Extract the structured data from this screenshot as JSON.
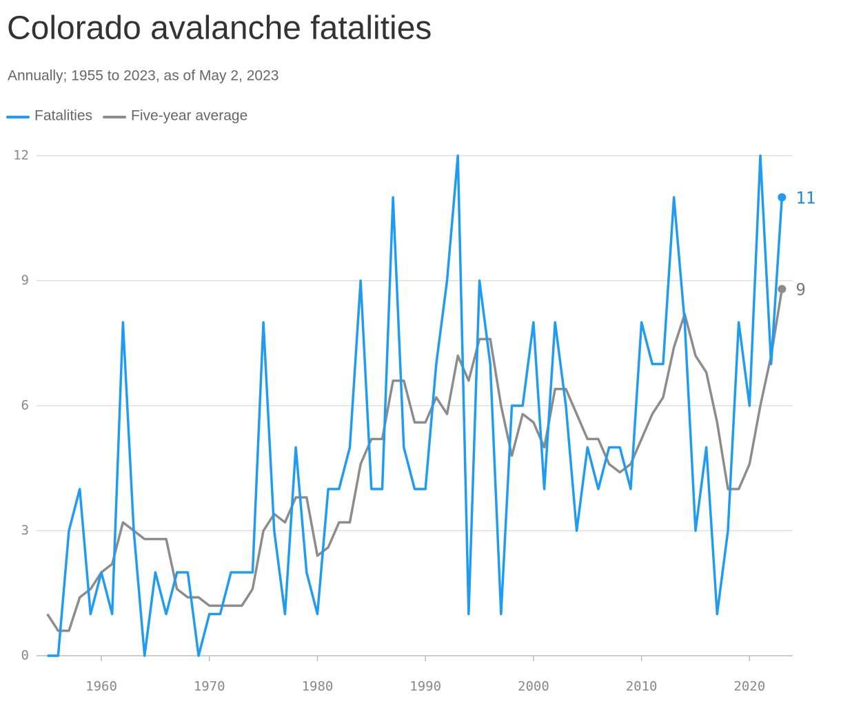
{
  "chart_data": {
    "type": "line",
    "title": "Colorado avalanche fatalities",
    "subtitle": "Annually; 1955 to 2023, as of May 2, 2023",
    "x": [
      1955,
      1956,
      1957,
      1958,
      1959,
      1960,
      1961,
      1962,
      1963,
      1964,
      1965,
      1966,
      1967,
      1968,
      1969,
      1970,
      1971,
      1972,
      1973,
      1974,
      1975,
      1976,
      1977,
      1978,
      1979,
      1980,
      1981,
      1982,
      1983,
      1984,
      1985,
      1986,
      1987,
      1988,
      1989,
      1990,
      1991,
      1992,
      1993,
      1994,
      1995,
      1996,
      1997,
      1998,
      1999,
      2000,
      2001,
      2002,
      2003,
      2004,
      2005,
      2006,
      2007,
      2008,
      2009,
      2010,
      2011,
      2012,
      2013,
      2014,
      2015,
      2016,
      2017,
      2018,
      2019,
      2020,
      2021,
      2022,
      2023
    ],
    "series": [
      {
        "name": "Fatalities",
        "color": "#1f9cf0",
        "end_label": "11",
        "values": [
          0,
          0,
          3,
          4,
          1,
          2,
          1,
          8,
          3,
          0,
          2,
          1,
          2,
          2,
          0,
          1,
          1,
          2,
          2,
          2,
          8,
          3,
          1,
          5,
          2,
          1,
          4,
          4,
          5,
          9,
          4,
          4,
          11,
          5,
          4,
          4,
          7,
          9,
          12,
          1,
          9,
          7,
          1,
          6,
          6,
          8,
          4,
          8,
          6,
          3,
          5,
          4,
          5,
          5,
          4,
          8,
          7,
          7,
          11,
          8,
          3,
          5,
          1,
          3,
          8,
          6,
          12,
          7,
          11
        ]
      },
      {
        "name": "Five-year average",
        "color": "#8c8c8c",
        "end_label": "9",
        "values": [
          1,
          0.6,
          0.6,
          1.4,
          1.6,
          2,
          2.2,
          3.2,
          3,
          2.8,
          2.8,
          2.8,
          1.6,
          1.4,
          1.4,
          1.2,
          1.2,
          1.2,
          1.2,
          1.6,
          3,
          3.4,
          3.2,
          3.8,
          3.8,
          2.4,
          2.6,
          3.2,
          3.2,
          4.6,
          5.2,
          5.2,
          6.6,
          6.6,
          5.6,
          5.6,
          6.2,
          5.8,
          7.2,
          6.6,
          7.6,
          7.6,
          6,
          4.8,
          5.8,
          5.6,
          5,
          6.4,
          6.4,
          5.8,
          5.2,
          5.2,
          4.6,
          4.4,
          4.6,
          5.2,
          5.8,
          6.2,
          7.4,
          8.2,
          7.2,
          6.8,
          5.6,
          4,
          4,
          4.6,
          6,
          7.2,
          8.8
        ]
      }
    ],
    "xlim": [
      1954,
      2024
    ],
    "xticks": [
      1960,
      1970,
      1980,
      1990,
      2000,
      2010,
      2020
    ],
    "ylim": [
      0,
      12
    ],
    "yticks": [
      0,
      3,
      6,
      9,
      12
    ],
    "grid": true
  }
}
